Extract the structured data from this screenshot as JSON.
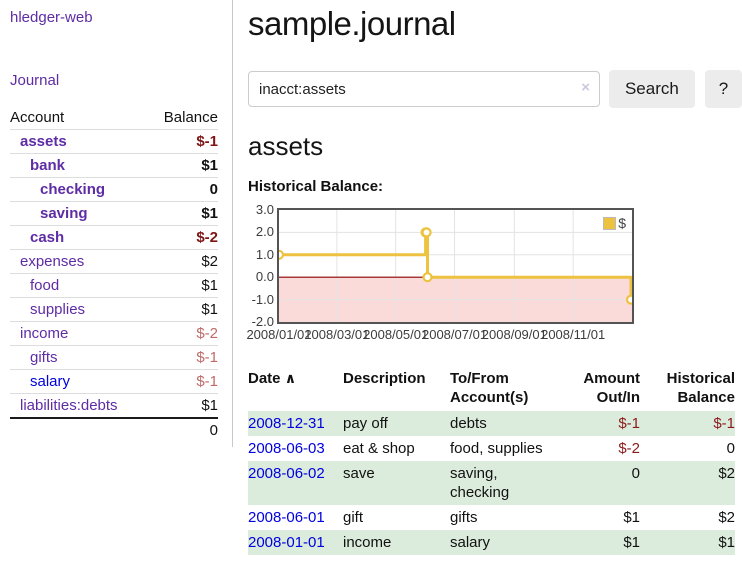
{
  "app": {
    "brand": "hledger-web"
  },
  "sidebar": {
    "nav_journal": "Journal",
    "accounts_table": {
      "headers": [
        "Account",
        "Balance"
      ],
      "rows": [
        {
          "name": "assets",
          "balance": "$-1",
          "depth": 1,
          "bold": true,
          "tone": "neg-strong"
        },
        {
          "name": "bank",
          "balance": "$1",
          "depth": 2,
          "bold": true
        },
        {
          "name": "checking",
          "balance": "0",
          "depth": 3,
          "bold": true
        },
        {
          "name": "saving",
          "balance": "$1",
          "depth": 3,
          "bold": true
        },
        {
          "name": "cash",
          "balance": "$-2",
          "depth": 2,
          "bold": true,
          "tone": "neg-strong"
        },
        {
          "name": "expenses",
          "balance": "$2",
          "depth": 1
        },
        {
          "name": "food",
          "balance": "$1",
          "depth": 2
        },
        {
          "name": "supplies",
          "balance": "$1",
          "depth": 2
        },
        {
          "name": "income",
          "balance": "$-2",
          "depth": 1,
          "tone": "neg-soft"
        },
        {
          "name": "gifts",
          "balance": "$-1",
          "depth": 2,
          "tone": "neg-soft"
        },
        {
          "name": "salary",
          "balance": "$-1",
          "depth": 2,
          "tone": "neg-soft",
          "link": "blue"
        },
        {
          "name": "liabilities:debts",
          "balance": "$1",
          "depth": 1
        }
      ],
      "total": "0"
    }
  },
  "header": {
    "title": "sample.journal"
  },
  "search": {
    "value": "inacct:assets",
    "clear_label": "×",
    "button": "Search",
    "help": "?"
  },
  "account_page": {
    "heading": "assets",
    "chart_label": "Historical Balance:"
  },
  "chart_data": {
    "type": "line",
    "title": "Historical Balance",
    "steps": true,
    "series": [
      {
        "name": "$",
        "color": "#edc240",
        "points": [
          [
            "2008-01-01",
            1
          ],
          [
            "2008-06-01",
            2
          ],
          [
            "2008-06-02",
            2
          ],
          [
            "2008-06-03",
            0
          ],
          [
            "2008-12-31",
            -1
          ]
        ]
      }
    ],
    "x_range": [
      "2008-01-01",
      "2009-01-01"
    ],
    "x_ticks": [
      {
        "pos": "2008-01-01",
        "label": "2008/01/01"
      },
      {
        "pos": "2008-03-01",
        "label": "2008/03/01"
      },
      {
        "pos": "2008-05-01",
        "label": "2008/05/01"
      },
      {
        "pos": "2008-07-01",
        "label": "2008/07/01"
      },
      {
        "pos": "2008-09-01",
        "label": "2008/09/01"
      },
      {
        "pos": "2008-11-01",
        "label": "2008/11/01"
      }
    ],
    "ylim": [
      -2,
      3
    ],
    "y_ticks": [
      3.0,
      2.0,
      1.0,
      0.0,
      -1.0,
      -2.0
    ],
    "y_tick_labels": [
      "3.0",
      "2.0",
      "1.0",
      "0.0",
      "-1.0",
      "-2.0"
    ],
    "legend": {
      "position": "ne",
      "label": "$"
    },
    "grid": true,
    "negative_region_color": "#fbdada",
    "zero_line_color": "#8b0000",
    "grid_line_color": "#e3e3e3"
  },
  "register_table": {
    "headers": {
      "date": "Date",
      "sort_icon": "∧",
      "description": "Description",
      "accounts": "To/From Account(s)",
      "amount": "Amount Out/In",
      "balance": "Historical Balance"
    },
    "rows": [
      {
        "date": "2008-12-31",
        "description": "pay off",
        "accounts": "debts",
        "amount": "$-1",
        "balance": "$-1"
      },
      {
        "date": "2008-06-03",
        "description": "eat & shop",
        "accounts": "food, supplies",
        "amount": "$-2",
        "balance": "0"
      },
      {
        "date": "2008-06-02",
        "description": "save",
        "accounts": "saving, checking",
        "amount": "0",
        "balance": "$2"
      },
      {
        "date": "2008-06-01",
        "description": "gift",
        "accounts": "gifts",
        "amount": "$1",
        "balance": "$2"
      },
      {
        "date": "2008-01-01",
        "description": "income",
        "accounts": "salary",
        "amount": "$1",
        "balance": "$1"
      }
    ]
  },
  "colors": {
    "accent_purple": "#5e2ca5",
    "link_blue": "#0000e0",
    "negative_strong": "#7f1515",
    "negative_soft": "#c06a6a",
    "table_negative": "#8b1b1b",
    "row_stripe_green": "#dcecdc",
    "chart_series_yellow": "#edc240",
    "chart_negative_fill": "#fbdada",
    "chart_zero_line": "#8b0000"
  }
}
